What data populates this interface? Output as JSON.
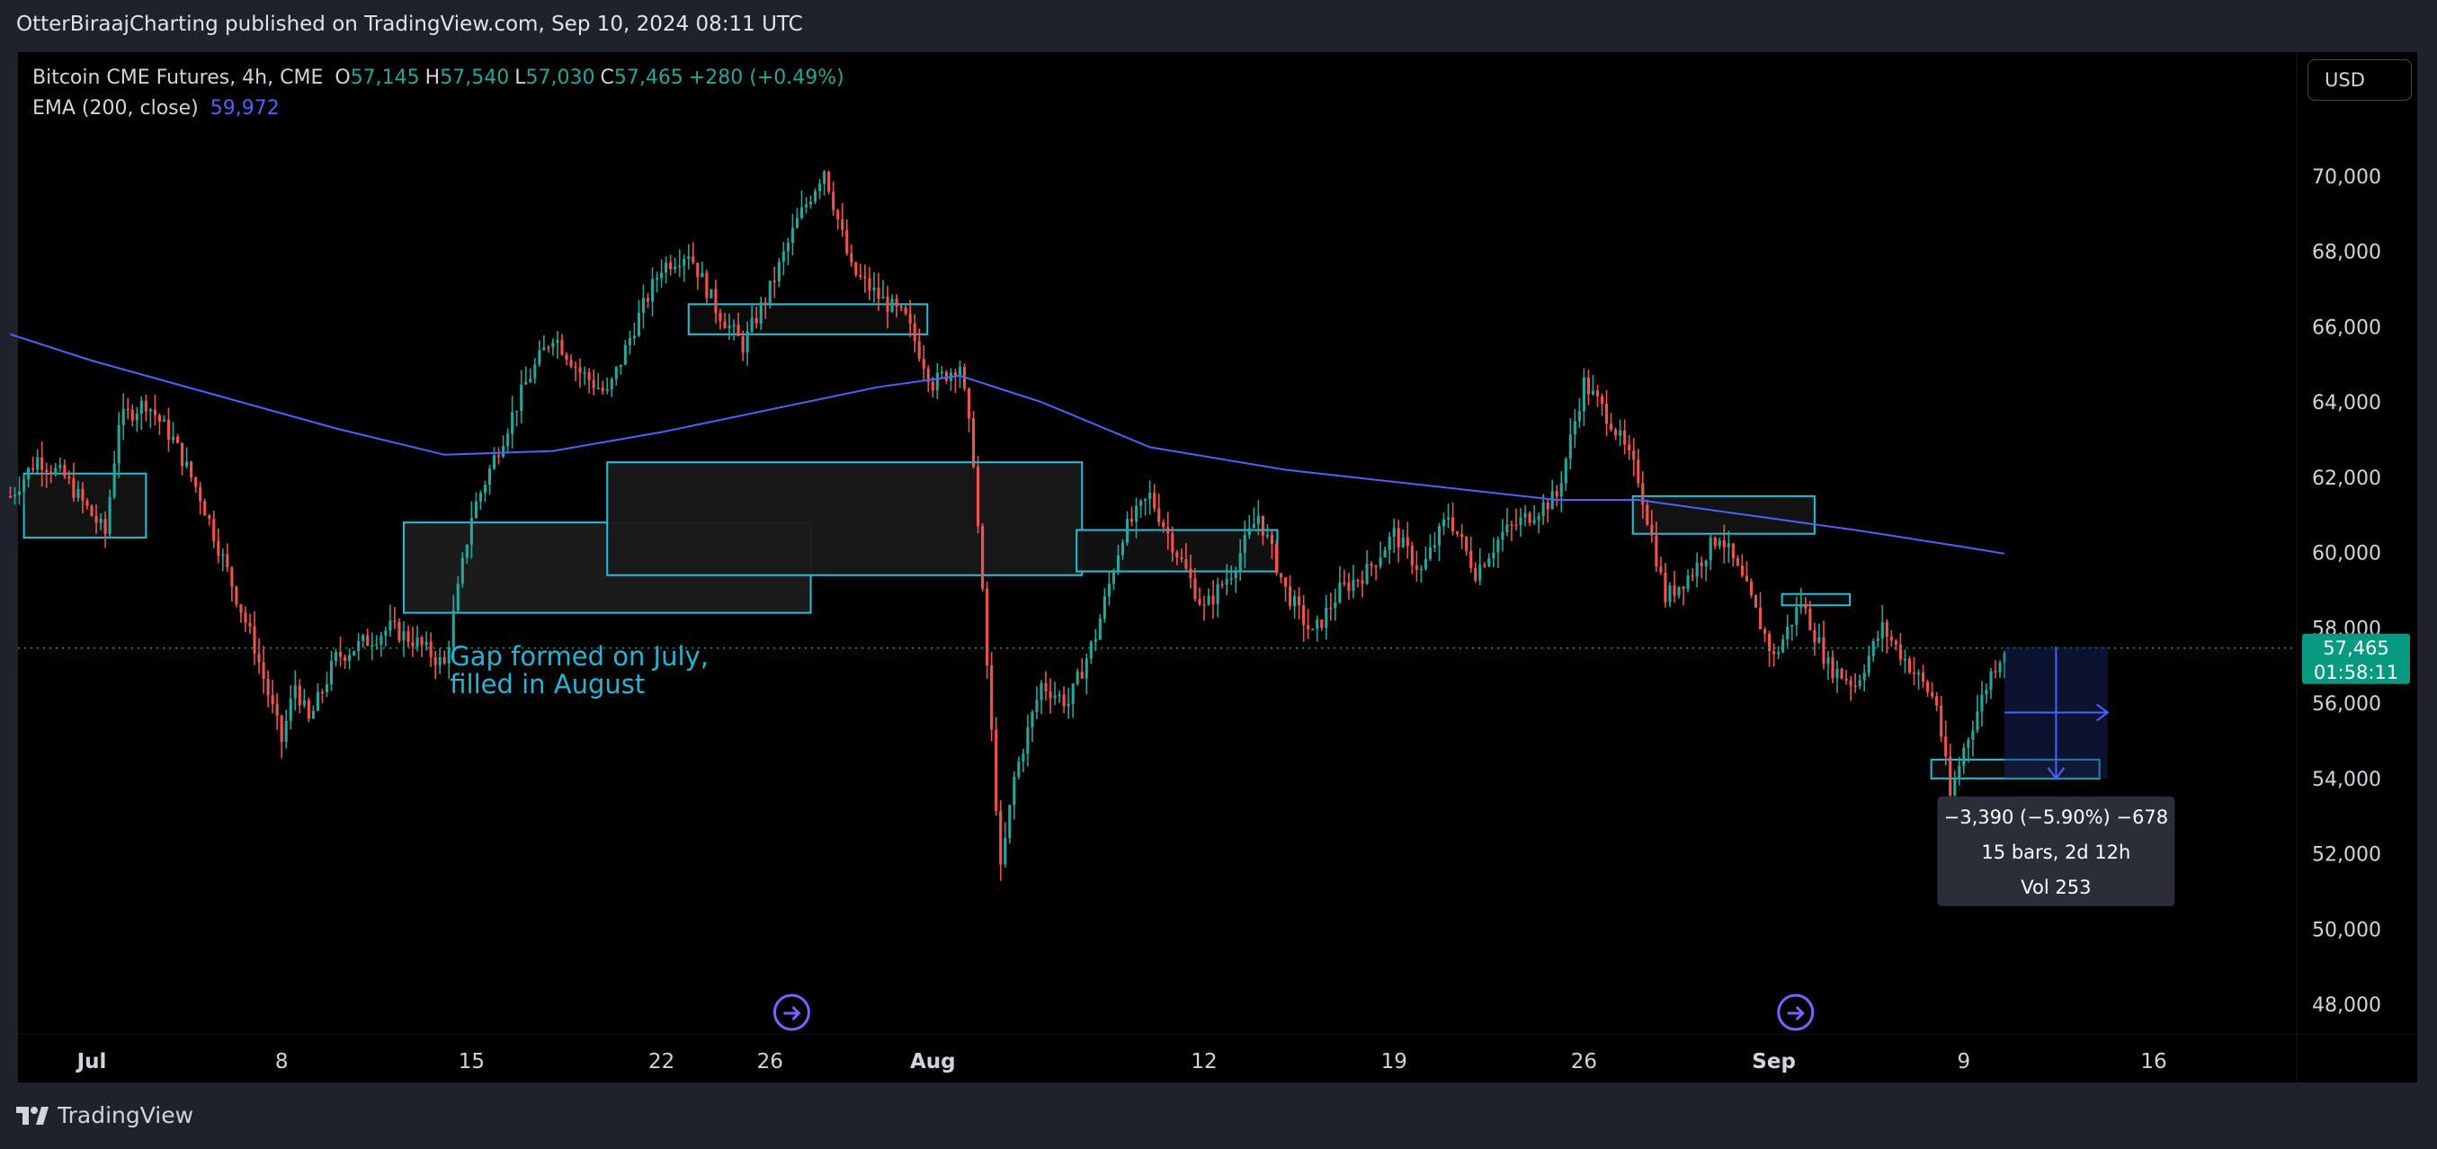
{
  "header": {
    "publisher_text": "OtterBiraajCharting published on TradingView.com, Sep 10, 2024 08:11 UTC"
  },
  "legend": {
    "symbol": "Bitcoin CME Futures, 4h, CME",
    "open_label": "O",
    "open": "57,145",
    "high_label": "H",
    "high": "57,540",
    "low_label": "L",
    "low": "57,030",
    "close_label": "C",
    "close": "57,465",
    "change": "+280 (+0.49%)",
    "ema_label": "EMA (200, close)",
    "ema_value": "59,972"
  },
  "currency_button": "USD",
  "footer": {
    "brand": "TradingView"
  },
  "colors": {
    "up": "#26a69a",
    "down": "#ef5350",
    "ema": "#4a63ff",
    "box": "#22c1d8",
    "annotation": "#22b5d8",
    "price_tag": "#089981",
    "event": "#7b61ff"
  },
  "chart_data": {
    "type": "candlestick",
    "title": "Bitcoin CME Futures, 4h, CME",
    "ylim": [
      46000,
      72000
    ],
    "y_ticks": [
      48000,
      50000,
      52000,
      54000,
      56000,
      58000,
      60000,
      62000,
      64000,
      66000,
      68000,
      70000
    ],
    "y_tick_labels": [
      "48,000",
      "50,000",
      "52,000",
      "54,000",
      "56,000",
      "58,000",
      "60,000",
      "62,000",
      "64,000",
      "66,000",
      "68,000",
      "70,000"
    ],
    "x_tick_labels": [
      "Jul",
      "8",
      "15",
      "22",
      "26",
      "Aug",
      "12",
      "19",
      "26",
      "Sep",
      "9",
      "16"
    ],
    "x_tick_days": [
      1,
      8,
      15,
      22,
      26,
      32,
      42,
      49,
      56,
      63,
      70,
      77
    ],
    "x_tick_bold": [
      true,
      false,
      false,
      false,
      false,
      true,
      false,
      false,
      false,
      true,
      false,
      false
    ],
    "x_range_days": [
      -2,
      90
    ],
    "price_points": [
      [
        -2,
        61500
      ],
      [
        -1,
        62500
      ],
      [
        0,
        62000
      ],
      [
        1,
        61000
      ],
      [
        1.5,
        60500
      ],
      [
        2,
        63500
      ],
      [
        3,
        64000
      ],
      [
        4,
        63000
      ],
      [
        5,
        61500
      ],
      [
        6,
        59500
      ],
      [
        7,
        57500
      ],
      [
        8,
        55000
      ],
      [
        8.5,
        56500
      ],
      [
        9,
        55500
      ],
      [
        10,
        57200
      ],
      [
        11,
        57600
      ],
      [
        12,
        58000
      ],
      [
        13,
        57600
      ],
      [
        14,
        57000
      ],
      [
        15,
        61000
      ],
      [
        16,
        62800
      ],
      [
        17,
        64500
      ],
      [
        18,
        65800
      ],
      [
        19,
        64800
      ],
      [
        20,
        64200
      ],
      [
        21,
        66000
      ],
      [
        22,
        67600
      ],
      [
        23,
        68000
      ],
      [
        24,
        66500
      ],
      [
        25,
        65500
      ],
      [
        26,
        67000
      ],
      [
        27,
        68800
      ],
      [
        28,
        70200
      ],
      [
        29,
        67500
      ],
      [
        30,
        66800
      ],
      [
        31,
        66200
      ],
      [
        32,
        64500
      ],
      [
        33,
        65000
      ],
      [
        33.5,
        62500
      ],
      [
        34,
        57000
      ],
      [
        34.5,
        51500
      ],
      [
        35,
        54000
      ],
      [
        36,
        56500
      ],
      [
        37,
        56000
      ],
      [
        38,
        57800
      ],
      [
        39,
        60500
      ],
      [
        40,
        61500
      ],
      [
        41,
        60000
      ],
      [
        42,
        58500
      ],
      [
        43,
        59500
      ],
      [
        44,
        61000
      ],
      [
        45,
        59000
      ],
      [
        46,
        57800
      ],
      [
        47,
        59000
      ],
      [
        48,
        59500
      ],
      [
        49,
        60500
      ],
      [
        50,
        59500
      ],
      [
        51,
        61000
      ],
      [
        52,
        59500
      ],
      [
        53,
        60500
      ],
      [
        54,
        61000
      ],
      [
        55,
        61500
      ],
      [
        56,
        64500
      ],
      [
        57,
        63500
      ],
      [
        58,
        62000
      ],
      [
        59,
        58800
      ],
      [
        60,
        59500
      ],
      [
        61,
        60500
      ],
      [
        62,
        59000
      ],
      [
        63,
        57200
      ],
      [
        64,
        58700
      ],
      [
        65,
        57000
      ],
      [
        66,
        56500
      ],
      [
        67,
        58000
      ],
      [
        68,
        57000
      ],
      [
        69,
        56000
      ],
      [
        69.5,
        53500
      ],
      [
        70,
        54800
      ],
      [
        71,
        56800
      ],
      [
        71.5,
        57465
      ]
    ],
    "ema_points": [
      [
        -2,
        65800
      ],
      [
        1,
        65100
      ],
      [
        5,
        64300
      ],
      [
        10,
        63300
      ],
      [
        14,
        62600
      ],
      [
        18,
        62700
      ],
      [
        22,
        63200
      ],
      [
        26,
        63800
      ],
      [
        30,
        64400
      ],
      [
        33,
        64700
      ],
      [
        36,
        64000
      ],
      [
        40,
        62800
      ],
      [
        45,
        62200
      ],
      [
        50,
        61800
      ],
      [
        55,
        61400
      ],
      [
        58,
        61400
      ],
      [
        62,
        61000
      ],
      [
        66,
        60600
      ],
      [
        70,
        60150
      ],
      [
        71.5,
        59972
      ]
    ],
    "zones": [
      {
        "x0": -1.5,
        "x1": 3,
        "y0": 60400,
        "y1": 62100,
        "fill": "#141414"
      },
      {
        "x0": 12.5,
        "x1": 27.5,
        "y0": 58400,
        "y1": 60800,
        "fill": "#1c1c1c"
      },
      {
        "x0": 20,
        "x1": 37.5,
        "y0": 59400,
        "y1": 62400,
        "fill": "#181818"
      },
      {
        "x0": 23,
        "x1": 31.8,
        "y0": 65800,
        "y1": 66600,
        "fill": "#0c0c0c"
      },
      {
        "x0": 37.3,
        "x1": 44.7,
        "y0": 59500,
        "y1": 60600,
        "fill": "#121212"
      },
      {
        "x0": 57.8,
        "x1": 64.5,
        "y0": 60500,
        "y1": 61500,
        "fill": "#141414"
      },
      {
        "x0": 63.3,
        "x1": 65.8,
        "y0": 58600,
        "y1": 58900,
        "fill": "#0c0c0c"
      },
      {
        "x0": 68.8,
        "x1": 75,
        "y0": 54000,
        "y1": 54500,
        "fill": "#0c0c0c"
      }
    ],
    "annotation": {
      "lines": [
        "Gap formed on July,",
        "filled in August"
      ],
      "x": 14.2,
      "y": 57000
    },
    "current_price": {
      "value": 57465,
      "label": "57,465",
      "countdown": "01:58:11"
    },
    "measure": {
      "x0": 71.5,
      "x1": 75.3,
      "y0": 54000,
      "y1": 57500,
      "line1": "−3,390 (−5.90%) −678",
      "line2": "15 bars, 2d 12h",
      "line3": "Vol 253"
    },
    "events": [
      {
        "x": 26.8
      },
      {
        "x": 63.8
      }
    ]
  }
}
